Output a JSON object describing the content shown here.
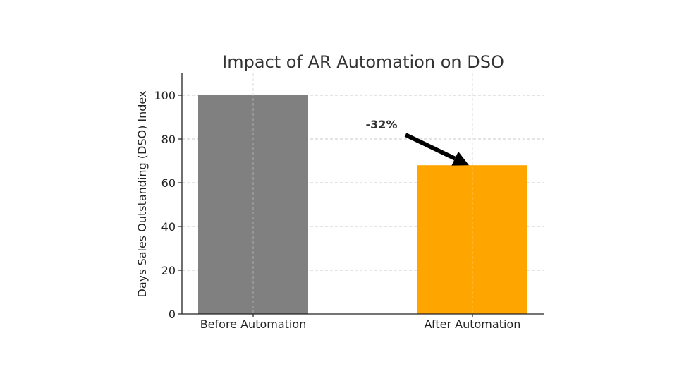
{
  "chart_data": {
    "type": "bar",
    "title": "Impact of AR Automation on DSO",
    "xlabel": "",
    "ylabel": "Days Sales Outstanding (DSO) Index",
    "categories": [
      "Before Automation",
      "After Automation"
    ],
    "values": [
      100,
      68
    ],
    "colors": [
      "#808080",
      "#FFA500"
    ],
    "ylim": [
      0,
      110
    ],
    "yticks": [
      0,
      20,
      40,
      60,
      80,
      100
    ],
    "grid": true,
    "annotation": {
      "text": "-32%",
      "target_category": "After Automation",
      "target_value": 68
    }
  }
}
